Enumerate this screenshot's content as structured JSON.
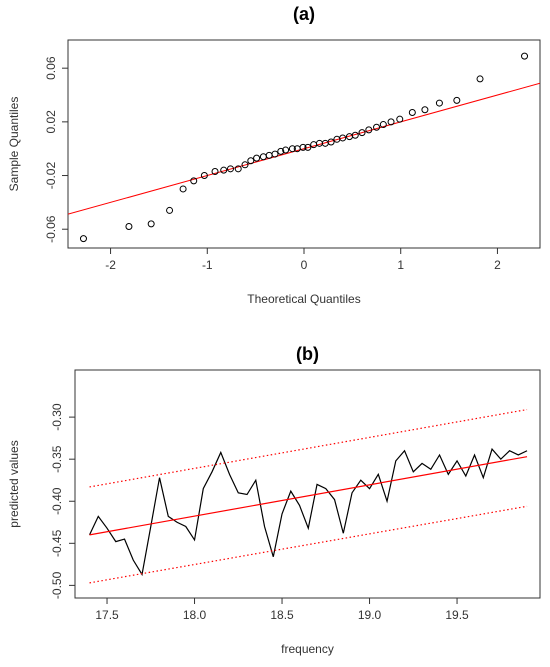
{
  "chart_data": [
    {
      "type": "scatter",
      "title": "(a)",
      "x_label": "Theoretical Quantiles",
      "y_label": "Sample Quantiles",
      "x": [
        -2.28,
        -1.81,
        -1.58,
        -1.39,
        -1.25,
        -1.14,
        -1.03,
        -0.92,
        -0.83,
        -0.76,
        -0.68,
        -0.61,
        -0.55,
        -0.49,
        -0.42,
        -0.36,
        -0.3,
        -0.24,
        -0.19,
        -0.12,
        -0.07,
        -0.01,
        0.04,
        0.1,
        0.16,
        0.22,
        0.28,
        0.34,
        0.4,
        0.47,
        0.53,
        0.6,
        0.67,
        0.75,
        0.82,
        0.9,
        0.99,
        1.12,
        1.25,
        1.4,
        1.58,
        1.82,
        2.28
      ],
      "values": [
        -0.067,
        -0.058,
        -0.056,
        -0.046,
        -0.03,
        -0.024,
        -0.02,
        -0.017,
        -0.016,
        -0.015,
        -0.015,
        -0.012,
        -0.009,
        -0.007,
        -0.006,
        -0.005,
        -0.004,
        -0.002,
        -0.001,
        0.0,
        0.0,
        0.001,
        0.001,
        0.003,
        0.004,
        0.004,
        0.005,
        0.007,
        0.008,
        0.009,
        0.01,
        0.012,
        0.014,
        0.016,
        0.018,
        0.02,
        0.022,
        0.027,
        0.029,
        0.034,
        0.036,
        0.052,
        0.069
      ],
      "color": "#000000",
      "ref_line": {
        "intercept": 0.0,
        "slope": 0.02,
        "color": "#ff0000"
      },
      "xlim": [
        -2.44,
        2.44
      ],
      "xticks": [
        -2,
        -1,
        0,
        1,
        2
      ],
      "ylim": [
        -0.074,
        0.081
      ],
      "yticks": [
        -0.06,
        -0.02,
        0.02,
        0.06
      ]
    },
    {
      "type": "line",
      "title": "(b)",
      "x_label": "frequency",
      "y_label": "predicted values",
      "x": [
        17.4,
        17.45,
        17.5,
        17.55,
        17.6,
        17.65,
        17.7,
        17.75,
        17.8,
        17.85,
        17.9,
        17.95,
        18.0,
        18.05,
        18.1,
        18.15,
        18.2,
        18.25,
        18.3,
        18.35,
        18.4,
        18.45,
        18.5,
        18.55,
        18.6,
        18.65,
        18.7,
        18.75,
        18.8,
        18.85,
        18.9,
        18.95,
        19.0,
        19.05,
        19.1,
        19.15,
        19.2,
        19.25,
        19.3,
        19.35,
        19.4,
        19.45,
        19.5,
        19.55,
        19.6,
        19.65,
        19.7,
        19.75,
        19.8,
        19.85,
        19.9
      ],
      "series": [
        {
          "color": "#000000",
          "linestyle": "solid",
          "values": [
            -0.44,
            -0.418,
            -0.432,
            -0.448,
            -0.445,
            -0.47,
            -0.487,
            -0.43,
            -0.372,
            -0.418,
            -0.425,
            -0.43,
            -0.446,
            -0.385,
            -0.365,
            -0.342,
            -0.368,
            -0.39,
            -0.392,
            -0.375,
            -0.43,
            -0.466,
            -0.415,
            -0.388,
            -0.405,
            -0.432,
            -0.38,
            -0.385,
            -0.398,
            -0.438,
            -0.39,
            -0.375,
            -0.385,
            -0.368,
            -0.4,
            -0.352,
            -0.34,
            -0.365,
            -0.355,
            -0.362,
            -0.345,
            -0.368,
            -0.352,
            -0.37,
            -0.345,
            -0.372,
            -0.338,
            -0.35,
            -0.34,
            -0.345,
            -0.34
          ]
        },
        {
          "color": "#ff0000",
          "linestyle": "solid",
          "x": [
            17.4,
            19.9
          ],
          "values": [
            -0.44,
            -0.347
          ]
        },
        {
          "color": "#ff0000",
          "linestyle": "dotted",
          "x": [
            17.4,
            19.9
          ],
          "values": [
            -0.383,
            -0.291
          ]
        },
        {
          "color": "#ff0000",
          "linestyle": "dotted",
          "x": [
            17.4,
            19.9
          ],
          "values": [
            -0.497,
            -0.406
          ]
        }
      ],
      "xlim": [
        17.317,
        19.974
      ],
      "xticks": [
        17.5,
        {
          "value": 18.0,
          "label": "18.0"
        },
        18.5,
        {
          "value": 19.0,
          "label": "19.0"
        },
        19.5
      ],
      "ylim": [
        -0.515,
        -0.244
      ],
      "yticks": [
        {
          "value": -0.5,
          "label": "-0.50"
        },
        -0.45,
        {
          "value": -0.4,
          "label": "-0.40"
        },
        -0.35,
        {
          "value": -0.3,
          "label": "-0.30"
        }
      ]
    }
  ]
}
